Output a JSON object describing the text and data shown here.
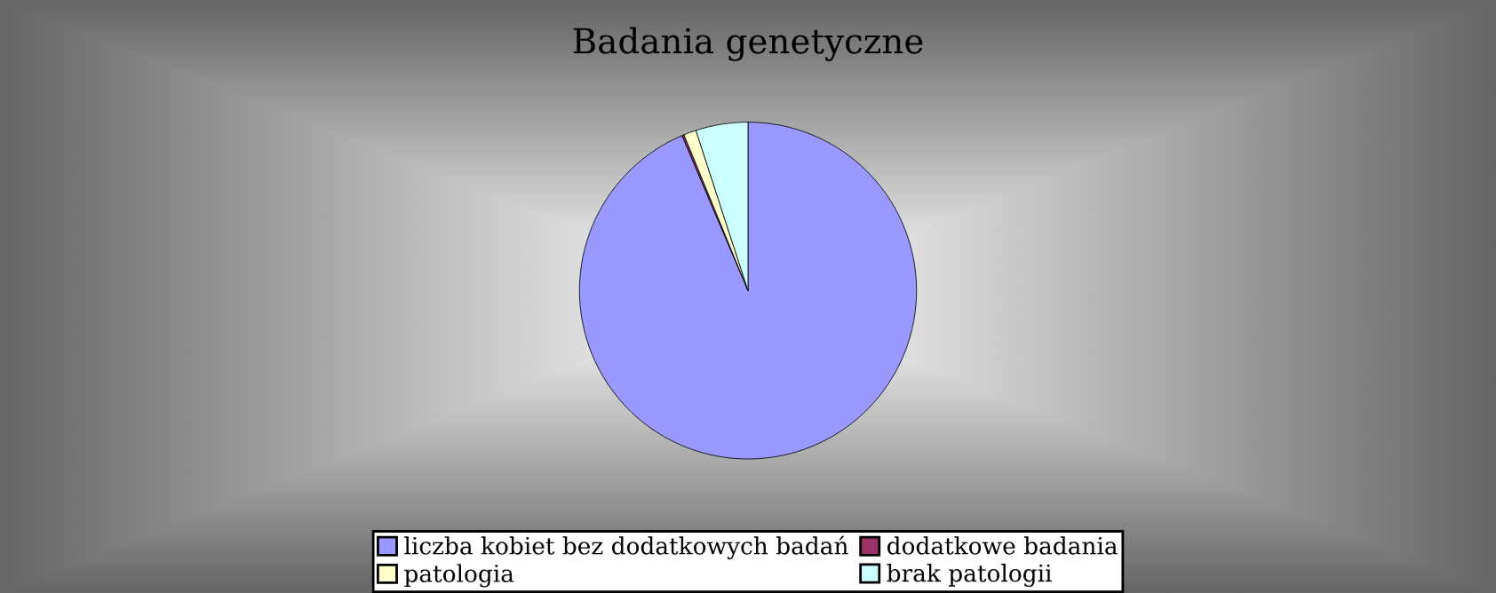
{
  "chart_data": {
    "type": "pie",
    "title": "Badania genetyczne",
    "categories": [
      "liczba kobiet bez dodatkowych badań",
      "dodatkowe badania",
      "patologia",
      "brak patologii"
    ],
    "values": [
      93.6,
      0.2,
      1.2,
      5.0
    ],
    "colors": [
      "#9999ff",
      "#993366",
      "#ffffcc",
      "#ccffff"
    ],
    "legend": "bottom"
  }
}
